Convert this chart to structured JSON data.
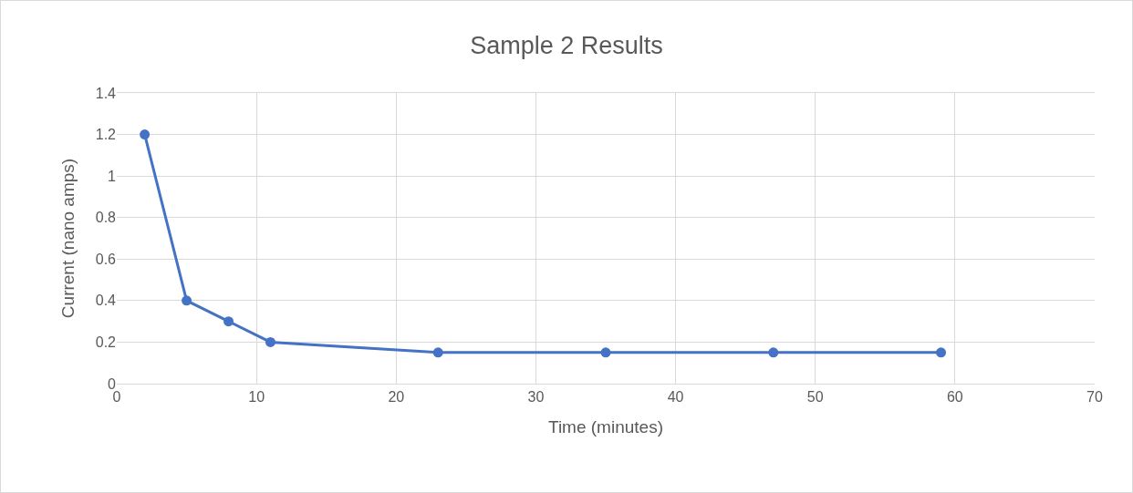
{
  "chart_data": {
    "type": "line",
    "title": "Sample 2 Results",
    "xlabel": "Time (minutes)",
    "ylabel": "Current (nano amps)",
    "x": [
      2,
      5,
      8,
      11,
      23,
      35,
      47,
      59
    ],
    "series": [
      {
        "color": "#4472c4",
        "values": [
          1.2,
          0.4,
          0.3,
          0.2,
          0.15,
          0.15,
          0.15,
          0.15
        ]
      }
    ],
    "xlim": [
      0,
      70
    ],
    "xticks": [
      0,
      10,
      20,
      30,
      40,
      50,
      60,
      70
    ],
    "ylim": [
      0,
      1.4
    ],
    "yticks": [
      0,
      0.2,
      0.4,
      0.6,
      0.8,
      1,
      1.2,
      1.4
    ],
    "grid": true,
    "marker": "circle",
    "line_style": "solid"
  }
}
